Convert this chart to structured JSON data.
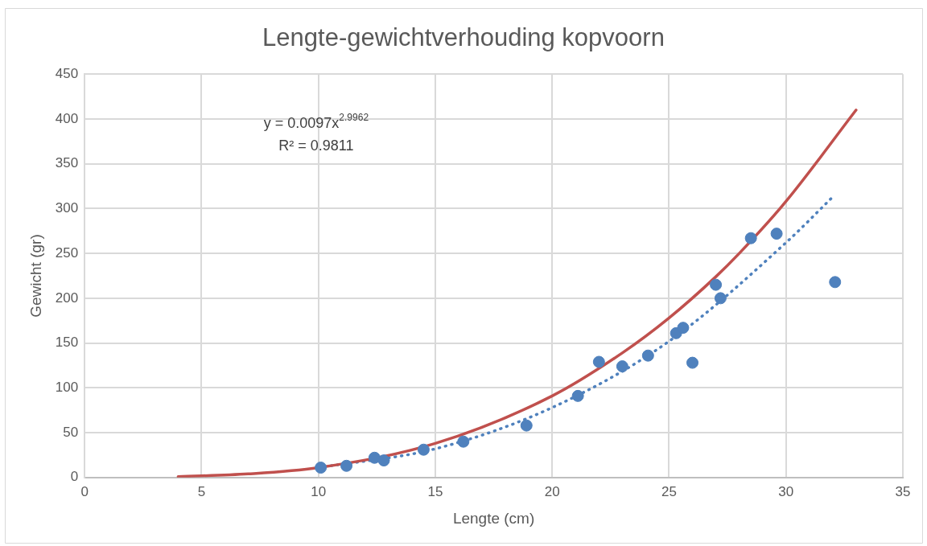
{
  "chart_data": {
    "type": "scatter",
    "title": "Lengte-gewichtverhouding kopvoorn",
    "xlabel": "Lengte (cm)",
    "ylabel": "Gewicht (gr)",
    "xlim": [
      0,
      35
    ],
    "xticks": [
      0,
      5,
      10,
      15,
      20,
      25,
      30,
      35
    ],
    "ylim": [
      0,
      450
    ],
    "yticks": [
      0,
      50,
      100,
      150,
      200,
      250,
      300,
      350,
      400,
      450
    ],
    "grid": true,
    "legend": false,
    "marker": "circle",
    "annotations": [
      "y = 0.0097x$^{2.9962}$",
      "R² = 0.9811"
    ],
    "series": [
      {
        "color": "#4f81bd",
        "x": [
          10.1,
          11.2,
          12.4,
          12.8,
          14.5,
          16.2,
          18.9,
          21.1,
          22,
          23,
          24.1,
          25.3,
          25.6,
          26,
          27,
          27.2,
          28.5,
          29.6,
          32.1
        ],
        "values": [
          11,
          13,
          22,
          19,
          31,
          40,
          58,
          91,
          129,
          124,
          136,
          161,
          167,
          128,
          215,
          200,
          267,
          272,
          218
        ]
      },
      {
        "type": "line",
        "color": "#c0504d",
        "marker": "none",
        "line_style": "solid",
        "x": [
          4,
          7,
          10,
          15,
          20,
          23,
          25,
          27,
          28,
          30,
          33
        ],
        "values": [
          1,
          4,
          11,
          38,
          91,
          139,
          178,
          224,
          250,
          308,
          410
        ]
      },
      {
        "type": "line",
        "color": "#4f81bd",
        "marker": "none",
        "line_style": "dotted",
        "x": [
          10,
          15,
          20,
          25,
          30,
          32
        ],
        "values": [
          11,
          32,
          78,
          152,
          262,
          313
        ]
      }
    ]
  }
}
